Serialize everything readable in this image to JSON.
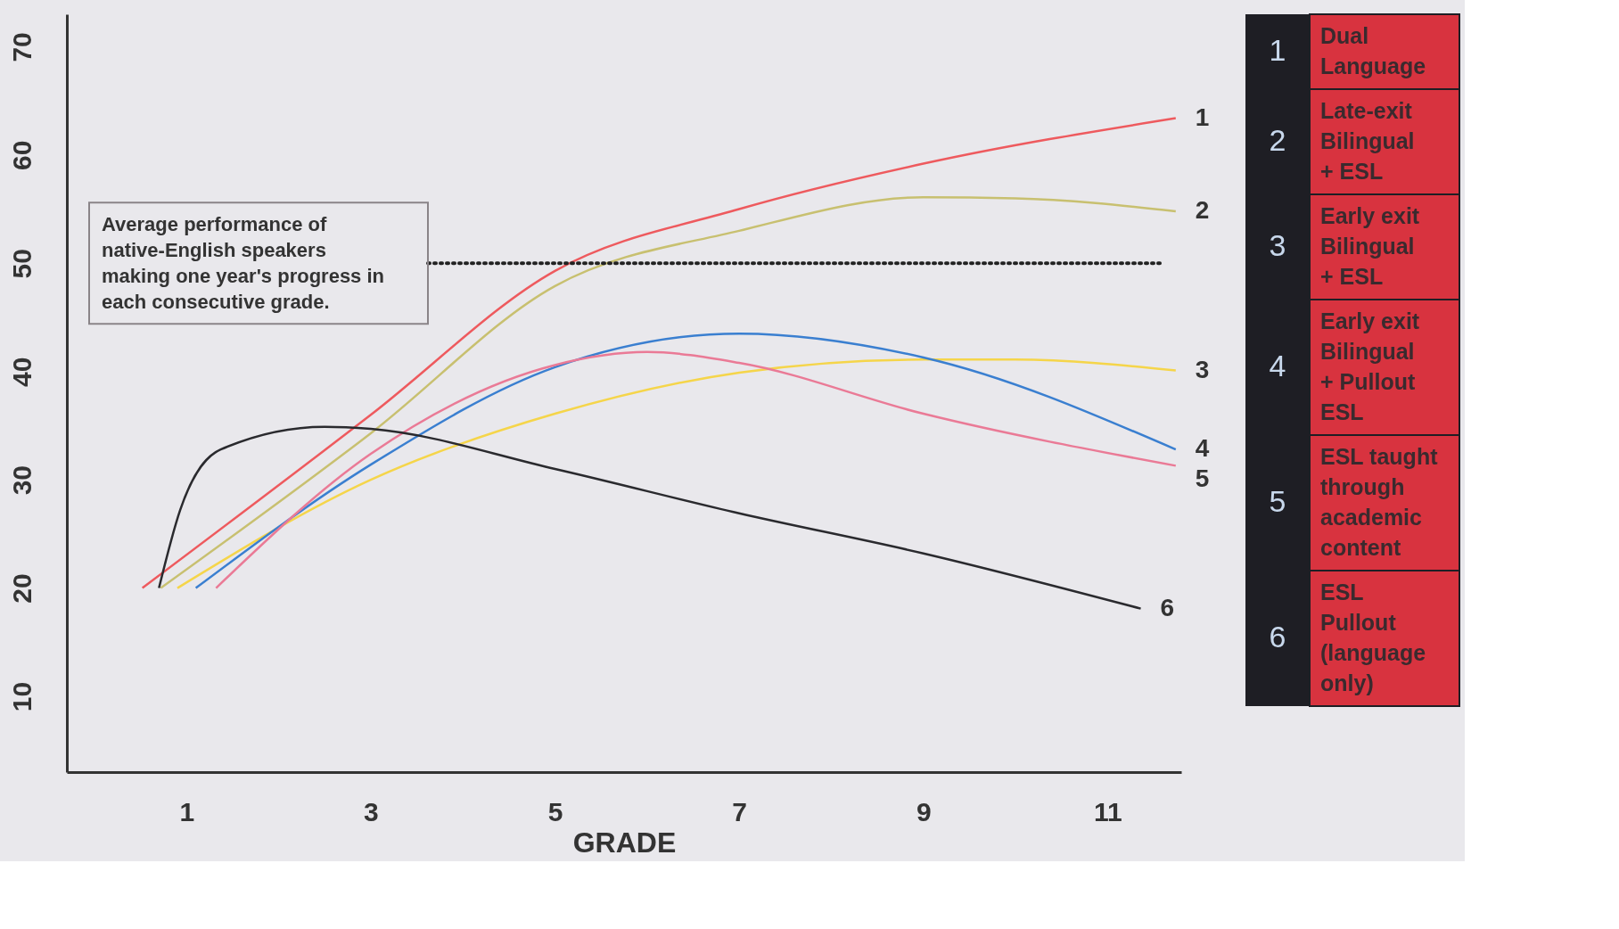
{
  "chart_data": {
    "type": "line",
    "xlabel": "GRADE",
    "xlim": [
      -0.3,
      11.8
    ],
    "ylim": [
      3,
      73
    ],
    "xticks": [
      1,
      3,
      5,
      7,
      9,
      11
    ],
    "yticks": [
      10,
      20,
      30,
      40,
      50,
      60,
      70
    ],
    "grid": false,
    "legend": "right",
    "line_style": "solid",
    "marker": "none",
    "series": [
      {
        "name": "Dual Language",
        "color": "#ee5a5e",
        "x": [
          0.52,
          3,
          5,
          7,
          9,
          11.74
        ],
        "values": [
          20,
          36,
          49.3,
          55,
          59.2,
          63.4
        ]
      },
      {
        "name": "Late-exit Bilingual + ESL",
        "color": "#c8c070",
        "x": [
          0.72,
          3,
          5,
          7,
          9,
          10,
          11.74
        ],
        "values": [
          20,
          34.3,
          47.9,
          53,
          56.1,
          56,
          54.8
        ]
      },
      {
        "name": "Early exit Bilingual + ESL",
        "color": "#f5d54a",
        "x": [
          0.9,
          3,
          5,
          7,
          9,
          10,
          11.74
        ],
        "values": [
          20,
          30,
          36.1,
          39.9,
          41.1,
          41.1,
          40.1
        ]
      },
      {
        "name": "Early exit Bilingual + Pullout ESL",
        "color": "#3a7fd0",
        "x": [
          1.1,
          3,
          5,
          7,
          9,
          11.74
        ],
        "values": [
          20,
          31.4,
          40.4,
          43.5,
          41.3,
          32.8
        ]
      },
      {
        "name": "ESL taught through academic content",
        "color": "#ea7a96",
        "x": [
          1.32,
          3,
          5,
          6,
          7,
          9,
          11.74
        ],
        "values": [
          20,
          32.4,
          40.6,
          41.8,
          40.8,
          36.1,
          31.3
        ]
      },
      {
        "name": "ESL Pullout (language only)",
        "color": "#2a2a2e",
        "x": [
          0.7,
          0.93,
          1.37,
          2.5,
          3,
          5,
          7,
          9,
          11.36
        ],
        "values": [
          20,
          27.2,
          32.8,
          34.9,
          34.7,
          31,
          26.9,
          23.2,
          18.1
        ]
      }
    ],
    "annotations": [
      "1",
      "2",
      "3",
      "4",
      "5",
      "6"
    ],
    "ref_lines": [
      {
        "axis": "y",
        "value": 50,
        "label": "Average performance of native-English speakers making one year's progress in each consecutive grade.",
        "line_style": "dotted",
        "color": "#222222"
      }
    ]
  }
}
